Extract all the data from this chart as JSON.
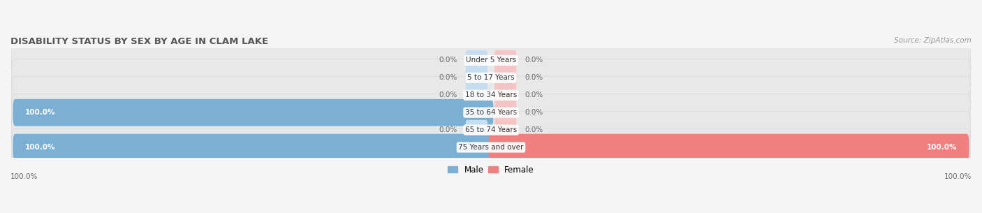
{
  "title": "DISABILITY STATUS BY SEX BY AGE IN CLAM LAKE",
  "source": "Source: ZipAtlas.com",
  "categories": [
    "Under 5 Years",
    "5 to 17 Years",
    "18 to 34 Years",
    "35 to 64 Years",
    "65 to 74 Years",
    "75 Years and over"
  ],
  "male_values": [
    0.0,
    0.0,
    0.0,
    100.0,
    0.0,
    100.0
  ],
  "female_values": [
    0.0,
    0.0,
    0.0,
    0.0,
    0.0,
    100.0
  ],
  "male_color": "#7bafd4",
  "female_color": "#f08080",
  "male_color_light": "#c5ddf0",
  "female_color_light": "#f5c5c5",
  "bg_color": "#f5f5f5",
  "bar_bg_color": "#e8e8e8",
  "title_color": "#555555",
  "text_color": "#666666",
  "label_color": "#333333",
  "max_value": 100.0,
  "figsize": [
    14.06,
    3.05
  ],
  "dpi": 100
}
